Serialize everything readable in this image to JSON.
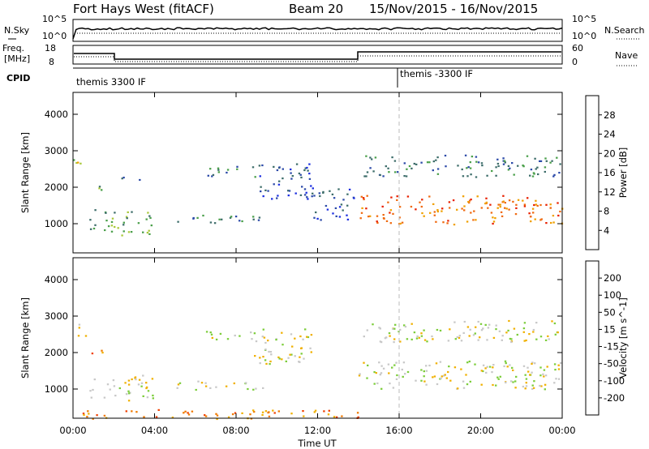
{
  "header": {
    "station": "Fort Hays West (fitACF)",
    "beam": "Beam 20",
    "dates": "15/Nov/2015 - 16/Nov/2015"
  },
  "sky_panel": {
    "left_label": "N.Sky",
    "right_label": "N.Search",
    "left_ticks": [
      "10^5",
      "10^0"
    ],
    "right_ticks": [
      "10^5",
      "10^0"
    ]
  },
  "freq_panel": {
    "left_label_1": "Freq.",
    "left_label_2": "[MHz]",
    "right_label": "Nave",
    "left_ticks": [
      "18",
      "8"
    ],
    "right_ticks": [
      "60",
      "0"
    ]
  },
  "cpid_panel": {
    "label": "CPID",
    "segment_1": "themis 3300 IF",
    "segment_2": "themis -3300 IF"
  },
  "x_axis": {
    "title": "Time UT",
    "ticks": [
      "00:00",
      "04:00",
      "08:00",
      "12:00",
      "16:00",
      "20:00",
      "00:00"
    ]
  },
  "chart_data": [
    {
      "type": "heatmap",
      "name": "power-panel",
      "ylabel": "Slant Range [km]",
      "yticks": [
        1000,
        2000,
        3000,
        4000
      ],
      "ylim": [
        200,
        4600
      ],
      "xlim_hours": [
        0,
        24
      ],
      "colorbar_label": "Power [dB]",
      "colorbar_ticks": [
        "4",
        "8",
        "12",
        "16",
        "20",
        "24",
        "28"
      ],
      "colors": [
        "#1c2fe0",
        "#2c4aa8",
        "#3d6d6a",
        "#4a9f4a",
        "#a9c93a",
        "#f0a000",
        "#f06a10",
        "#e82000"
      ],
      "regions": [
        {
          "t0": 0.0,
          "t1": 0.6,
          "r0": 2400,
          "r1": 2800,
          "level": 4
        },
        {
          "t0": 0.7,
          "t1": 1.5,
          "r0": 1900,
          "r1": 2100,
          "level": 3
        },
        {
          "t0": 0.8,
          "t1": 4.0,
          "r0": 700,
          "r1": 1400,
          "level": 3
        },
        {
          "t0": 2.3,
          "t1": 3.6,
          "r0": 2150,
          "r1": 2300,
          "level": 2
        },
        {
          "t0": 5.0,
          "t1": 9.3,
          "r0": 1000,
          "r1": 1250,
          "level": 2
        },
        {
          "t0": 6.5,
          "t1": 9.0,
          "r0": 2300,
          "r1": 2600,
          "level": 2
        },
        {
          "t0": 8.8,
          "t1": 11.7,
          "r0": 1700,
          "r1": 2700,
          "level": 1
        },
        {
          "t0": 11.7,
          "t1": 13.8,
          "r0": 1100,
          "r1": 2000,
          "level": 1
        },
        {
          "t0": 14.0,
          "t1": 24.0,
          "r0": 1000,
          "r1": 1800,
          "level": 6
        },
        {
          "t0": 14.2,
          "t1": 24.0,
          "r0": 2300,
          "r1": 2900,
          "level": 2
        }
      ]
    },
    {
      "type": "heatmap",
      "name": "velocity-panel",
      "ylabel": "Slant Range [km]",
      "yticks": [
        1000,
        2000,
        3000,
        4000
      ],
      "ylim": [
        200,
        4600
      ],
      "xlim_hours": [
        0,
        24
      ],
      "colorbar_label": "Velocity [m s^-1]",
      "colorbar_ticks": [
        "200",
        "100",
        "50",
        "15",
        "-15",
        "-50",
        "-100",
        "-200"
      ],
      "colors": [
        "#1c2fe0",
        "#2c5aa0",
        "#3a9a5a",
        "#7ccd3a",
        "#c8c8c8",
        "#f0b000",
        "#f07a00",
        "#f04000",
        "#e81010"
      ],
      "regions": [
        {
          "t0": 0.0,
          "t1": 0.6,
          "r0": 2400,
          "r1": 2800,
          "level": 4
        },
        {
          "t0": 0.7,
          "t1": 1.5,
          "r0": 1900,
          "r1": 2100,
          "level": 6
        },
        {
          "t0": 0.8,
          "t1": 4.0,
          "r0": 700,
          "r1": 1400,
          "level": 4
        },
        {
          "t0": 5.0,
          "t1": 9.3,
          "r0": 1000,
          "r1": 1250,
          "level": 4
        },
        {
          "t0": 6.5,
          "t1": 9.0,
          "r0": 2300,
          "r1": 2600,
          "level": 4
        },
        {
          "t0": 8.8,
          "t1": 11.7,
          "r0": 1700,
          "r1": 2700,
          "level": 4
        },
        {
          "t0": 14.0,
          "t1": 24.0,
          "r0": 1000,
          "r1": 1800,
          "level": 4
        },
        {
          "t0": 14.2,
          "t1": 24.0,
          "r0": 2300,
          "r1": 2900,
          "level": 4
        },
        {
          "t0": 0.0,
          "t1": 14.0,
          "r0": 200,
          "r1": 450,
          "level": 6
        }
      ]
    }
  ]
}
